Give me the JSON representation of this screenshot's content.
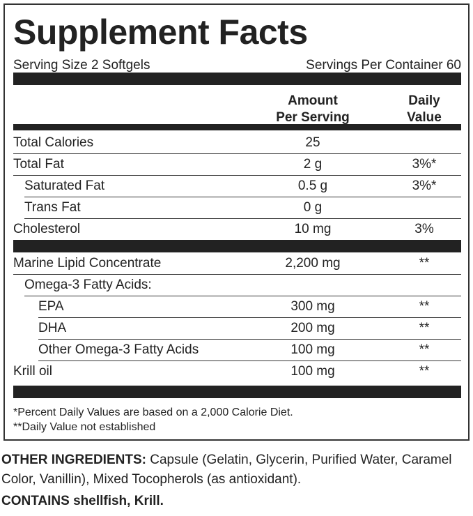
{
  "title": "Supplement Facts",
  "serving_size": "Serving Size 2 Softgels",
  "servings_per_container": "Servings Per Container 60",
  "header": {
    "amount": [
      "Amount",
      "Per Serving"
    ],
    "daily_value": [
      "Daily",
      "Value"
    ]
  },
  "rows": [
    [
      "Total Calories",
      "25"
    ],
    [
      "Total Fat",
      "2 g",
      "3%*"
    ],
    [
      "Saturated Fat",
      "0.5 g",
      "3%*"
    ],
    [
      "Trans Fat",
      "0 g"
    ],
    [
      "Cholesterol",
      "10 mg",
      "3%"
    ]
  ],
  "rows2": [
    [
      "Marine Lipid Concentrate",
      "2,200 mg",
      "**"
    ],
    [
      "Omega-3 Fatty Acids:"
    ],
    [
      "EPA",
      "300 mg",
      "**"
    ],
    [
      "DHA",
      "200 mg",
      "**"
    ],
    [
      "Other Omega-3 Fatty Acids",
      "100 mg",
      "**"
    ],
    [
      "Krill oil",
      "100 mg",
      "**"
    ]
  ],
  "footnotes": [
    "*Percent Daily Values are based on a 2,000 Calorie Diet.",
    "**Daily Value not established"
  ],
  "other_ingredients": {
    "label": "OTHER INGREDIENTS:",
    "text": "Capsule (Gelatin, Glycerin, Purified Water, Caramel Color, Vanillin), Mixed Tocopherols (as antioxidant)."
  },
  "contains": "CONTAINS shellfish, Krill."
}
